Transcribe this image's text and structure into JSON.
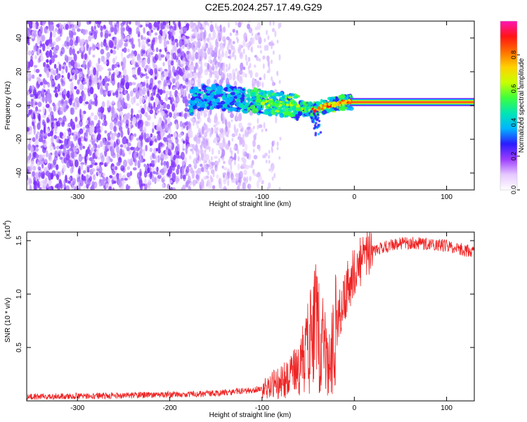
{
  "title": "C2E5.2024.257.17.49.G29",
  "chart_data": [
    {
      "type": "heatmap",
      "title": "C2E5.2024.257.17.49.G29",
      "xlabel": "Height of straight line (km)",
      "ylabel": "Frequency (Hz)",
      "xlim": [
        -355,
        130
      ],
      "ylim": [
        -50,
        50
      ],
      "xticks": [
        -300,
        -200,
        -100,
        0,
        100
      ],
      "xtick_labels": [
        "-300",
        "-200",
        "-100",
        "0",
        "100"
      ],
      "yticks": [
        -40,
        -20,
        0,
        20,
        40
      ],
      "ytick_labels": [
        "-40",
        "-20",
        "0",
        "20",
        "40"
      ],
      "colorbar": {
        "label": "Normalized spectral amplitude",
        "range": [
          0,
          1
        ],
        "ticks": [
          0.0,
          0.2,
          0.4,
          0.6,
          0.8
        ],
        "tick_labels": [
          "0.0",
          "0.2",
          "0.4",
          "0.6",
          "0.8"
        ],
        "colors": [
          "#ffffff",
          "#e6c8ff",
          "#9b3cff",
          "#2a1cff",
          "#00b4ff",
          "#00e6b4",
          "#3cff3c",
          "#c8ff00",
          "#ffd200",
          "#ff6e00",
          "#ff1414",
          "#ff14b4"
        ]
      },
      "signal_track": [
        {
          "x": -175,
          "y": 4
        },
        {
          "x": -160,
          "y": 5
        },
        {
          "x": -145,
          "y": 5
        },
        {
          "x": -130,
          "y": 4
        },
        {
          "x": -115,
          "y": 3
        },
        {
          "x": -100,
          "y": 2
        },
        {
          "x": -85,
          "y": 1
        },
        {
          "x": -70,
          "y": 0
        },
        {
          "x": -55,
          "y": -2
        },
        {
          "x": -45,
          "y": -3
        },
        {
          "x": -40,
          "y": -2
        },
        {
          "x": -30,
          "y": 0
        },
        {
          "x": -20,
          "y": 1
        },
        {
          "x": -10,
          "y": 2
        },
        {
          "x": 0,
          "y": 2
        },
        {
          "x": 130,
          "y": 2
        }
      ]
    },
    {
      "type": "line",
      "xlabel": "Height of straight line (km)",
      "ylabel": "SNR (10 * v/v)",
      "multiplier_label": "(x10",
      "multiplier_exponent": "4",
      "xlim": [
        -355,
        130
      ],
      "ylim": [
        0,
        1.58
      ],
      "xticks": [
        -300,
        -200,
        -100,
        0,
        100
      ],
      "xtick_labels": [
        "-300",
        "-200",
        "-100",
        "0",
        "100"
      ],
      "yticks": [
        0.5,
        1.0,
        1.5
      ],
      "ytick_labels": [
        "0.5",
        "1.0",
        "1.5"
      ],
      "color": "#ee2222",
      "series_envelope": [
        {
          "x": -355,
          "y": 0.04
        },
        {
          "x": -250,
          "y": 0.05
        },
        {
          "x": -150,
          "y": 0.07
        },
        {
          "x": -110,
          "y": 0.1
        },
        {
          "x": -90,
          "y": 0.14
        },
        {
          "x": -70,
          "y": 0.22
        },
        {
          "x": -60,
          "y": 0.3
        },
        {
          "x": -50,
          "y": 0.5
        },
        {
          "x": -42,
          "y": 0.75
        },
        {
          "x": -35,
          "y": 0.55
        },
        {
          "x": -28,
          "y": 0.35
        },
        {
          "x": -22,
          "y": 0.6
        },
        {
          "x": -15,
          "y": 0.85
        },
        {
          "x": -8,
          "y": 1.05
        },
        {
          "x": 0,
          "y": 1.2
        },
        {
          "x": 10,
          "y": 1.35
        },
        {
          "x": 25,
          "y": 1.42
        },
        {
          "x": 45,
          "y": 1.47
        },
        {
          "x": 60,
          "y": 1.48
        },
        {
          "x": 80,
          "y": 1.47
        },
        {
          "x": 100,
          "y": 1.45
        },
        {
          "x": 115,
          "y": 1.42
        },
        {
          "x": 130,
          "y": 1.39
        }
      ]
    }
  ]
}
